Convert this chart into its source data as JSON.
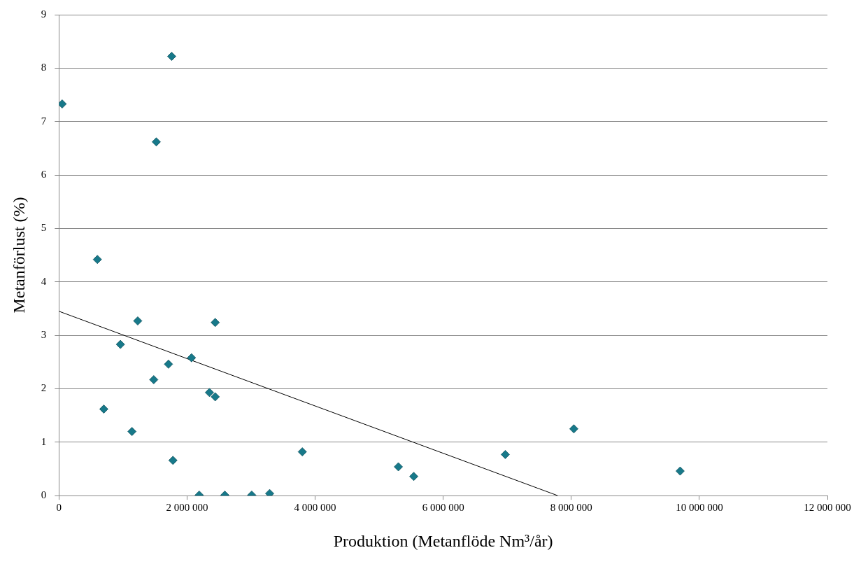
{
  "chart_data": {
    "type": "scatter",
    "xlabel": "Produktion (Metanflöde Nm³/år)",
    "ylabel": "Metanförlust (%)",
    "xlim": [
      0,
      12000000
    ],
    "xticks": [
      0,
      {
        "value": 2000000,
        "label": "2 000 000"
      },
      {
        "value": 4000000,
        "label": "4 000 000"
      },
      {
        "value": 6000000,
        "label": "6 000 000"
      },
      {
        "value": 8000000,
        "label": "8 000 000"
      },
      {
        "value": 10000000,
        "label": "10 000 000"
      },
      {
        "value": 12000000,
        "label": "12 000 000"
      }
    ],
    "ylim": [
      0,
      9
    ],
    "yticks": [
      0,
      1,
      2,
      3,
      4,
      5,
      6,
      7,
      8,
      9
    ],
    "grid": "y",
    "legend": false,
    "series": [
      {
        "type": "scatter",
        "marker": "diamond",
        "color": "#17798a",
        "x": [
          50000,
          1760000,
          1520000,
          600000,
          1230000,
          2440000,
          960000,
          2070000,
          1710000,
          1480000,
          2350000,
          2440000,
          700000,
          1140000,
          1780000,
          2190000,
          2590000,
          3010000,
          3290000,
          3800000,
          5300000,
          5540000,
          6970000,
          8040000,
          9700000
        ],
        "values": [
          7.33,
          8.22,
          6.62,
          4.42,
          3.27,
          3.24,
          2.83,
          2.58,
          2.46,
          2.17,
          1.93,
          1.85,
          1.62,
          1.2,
          0.66,
          0.01,
          0.01,
          0.01,
          0.04,
          0.82,
          0.54,
          0.36,
          0.77,
          1.25,
          0.46
        ]
      },
      {
        "type": "line",
        "marker": "none",
        "color": "#000000",
        "x": [
          0,
          7790000
        ],
        "values": [
          3.45,
          0
        ]
      }
    ]
  }
}
